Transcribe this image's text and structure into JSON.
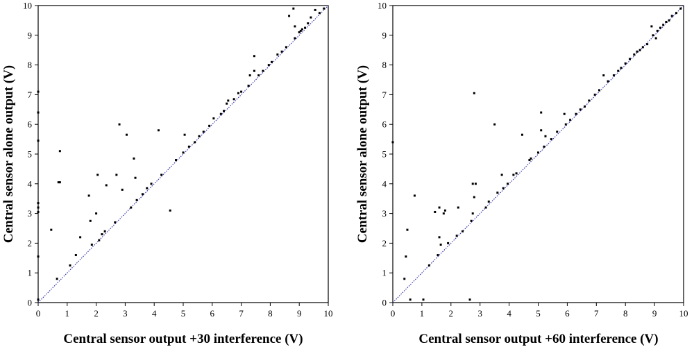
{
  "chart_data": [
    {
      "type": "scatter",
      "title": "",
      "xlabel": "Central sensor output +30 interference (V)",
      "ylabel": "Central sensor alone output (V)",
      "xlim": [
        0,
        10
      ],
      "ylim": [
        0,
        10
      ],
      "xticks": [
        "0",
        "1",
        "2",
        "3",
        "4",
        "5",
        "6",
        "7",
        "8",
        "9",
        "10"
      ],
      "yticks": [
        "0",
        "1",
        "2",
        "3",
        "4",
        "5",
        "6",
        "7",
        "8",
        "9",
        "10"
      ],
      "reference_line": {
        "type": "y=x",
        "color": "#3333aa",
        "style": "dotted"
      },
      "marker_color": "#000000",
      "points": [
        [
          0,
          0.1
        ],
        [
          0,
          1.55
        ],
        [
          0,
          3.05
        ],
        [
          0,
          3.2
        ],
        [
          0,
          3.35
        ],
        [
          0,
          5.45
        ],
        [
          0,
          6.4
        ],
        [
          0,
          7.1
        ],
        [
          0.45,
          2.45
        ],
        [
          0.65,
          0.8
        ],
        [
          0.7,
          4.05
        ],
        [
          0.75,
          4.05
        ],
        [
          0.75,
          5.1
        ],
        [
          1.1,
          1.25
        ],
        [
          1.3,
          1.6
        ],
        [
          1.45,
          2.2
        ],
        [
          1.75,
          3.6
        ],
        [
          1.8,
          2.75
        ],
        [
          1.85,
          1.95
        ],
        [
          2.0,
          3.0
        ],
        [
          2.05,
          4.3
        ],
        [
          2.1,
          2.1
        ],
        [
          2.2,
          2.3
        ],
        [
          2.3,
          2.4
        ],
        [
          2.35,
          3.95
        ],
        [
          2.65,
          2.7
        ],
        [
          2.7,
          4.3
        ],
        [
          2.8,
          6.0
        ],
        [
          2.9,
          3.8
        ],
        [
          3.05,
          5.65
        ],
        [
          3.2,
          3.2
        ],
        [
          3.3,
          4.85
        ],
        [
          3.35,
          4.2
        ],
        [
          3.4,
          3.45
        ],
        [
          3.6,
          3.65
        ],
        [
          3.75,
          3.85
        ],
        [
          3.9,
          4.0
        ],
        [
          4.15,
          5.8
        ],
        [
          4.25,
          4.3
        ],
        [
          4.55,
          3.1
        ],
        [
          4.75,
          4.8
        ],
        [
          5.0,
          5.05
        ],
        [
          5.05,
          5.65
        ],
        [
          5.2,
          5.25
        ],
        [
          5.4,
          5.4
        ],
        [
          5.55,
          5.6
        ],
        [
          5.7,
          5.75
        ],
        [
          5.9,
          5.95
        ],
        [
          6.05,
          6.2
        ],
        [
          6.3,
          6.35
        ],
        [
          6.4,
          6.45
        ],
        [
          6.5,
          6.7
        ],
        [
          6.55,
          6.8
        ],
        [
          6.75,
          6.85
        ],
        [
          6.9,
          7.05
        ],
        [
          7.0,
          7.1
        ],
        [
          7.25,
          7.3
        ],
        [
          7.3,
          7.65
        ],
        [
          7.45,
          7.8
        ],
        [
          7.45,
          8.3
        ],
        [
          7.6,
          7.65
        ],
        [
          7.75,
          7.8
        ],
        [
          7.95,
          8.0
        ],
        [
          8.05,
          8.1
        ],
        [
          8.25,
          8.35
        ],
        [
          8.4,
          8.45
        ],
        [
          8.55,
          8.6
        ],
        [
          8.65,
          9.65
        ],
        [
          8.8,
          9.9
        ],
        [
          8.85,
          8.9
        ],
        [
          8.85,
          9.3
        ],
        [
          9.0,
          9.1
        ],
        [
          9.05,
          9.15
        ],
        [
          9.1,
          9.2
        ],
        [
          9.2,
          9.25
        ],
        [
          9.3,
          9.4
        ],
        [
          9.4,
          9.6
        ],
        [
          9.55,
          9.85
        ],
        [
          9.7,
          9.75
        ],
        [
          9.85,
          9.9
        ]
      ]
    },
    {
      "type": "scatter",
      "title": "",
      "xlabel": "Central sensor output +60 interference (V)",
      "ylabel": "Central sensor alone output (V)",
      "xlim": [
        0,
        10
      ],
      "ylim": [
        0,
        10
      ],
      "xticks": [
        "0",
        "1",
        "2",
        "3",
        "4",
        "5",
        "6",
        "7",
        "8",
        "9",
        "10"
      ],
      "yticks": [
        "0",
        "1",
        "2",
        "3",
        "4",
        "5",
        "6",
        "7",
        "8",
        "9",
        "10"
      ],
      "reference_line": {
        "type": "y=x",
        "color": "#3333aa",
        "style": "dotted"
      },
      "marker_color": "#000000",
      "points": [
        [
          0,
          5.4
        ],
        [
          0.4,
          0.8
        ],
        [
          0.45,
          1.55
        ],
        [
          0.5,
          2.45
        ],
        [
          0.6,
          0.1
        ],
        [
          0.75,
          3.6
        ],
        [
          1.05,
          0.1
        ],
        [
          1.25,
          1.25
        ],
        [
          1.45,
          3.05
        ],
        [
          1.55,
          1.6
        ],
        [
          1.6,
          2.2
        ],
        [
          1.6,
          3.2
        ],
        [
          1.65,
          1.95
        ],
        [
          1.75,
          3.0
        ],
        [
          1.8,
          3.1
        ],
        [
          1.9,
          2.0
        ],
        [
          2.2,
          2.25
        ],
        [
          2.25,
          3.2
        ],
        [
          2.4,
          2.4
        ],
        [
          2.65,
          0.1
        ],
        [
          2.7,
          2.75
        ],
        [
          2.75,
          3.0
        ],
        [
          2.75,
          4.0
        ],
        [
          2.8,
          3.55
        ],
        [
          2.8,
          7.05
        ],
        [
          2.85,
          4.0
        ],
        [
          3.2,
          3.2
        ],
        [
          3.3,
          3.4
        ],
        [
          3.5,
          6.0
        ],
        [
          3.6,
          3.7
        ],
        [
          3.75,
          4.3
        ],
        [
          3.8,
          3.85
        ],
        [
          3.95,
          4.0
        ],
        [
          4.15,
          4.3
        ],
        [
          4.25,
          4.35
        ],
        [
          4.45,
          5.65
        ],
        [
          4.7,
          4.8
        ],
        [
          4.75,
          4.85
        ],
        [
          5.0,
          5.05
        ],
        [
          5.1,
          6.4
        ],
        [
          5.1,
          5.8
        ],
        [
          5.2,
          5.25
        ],
        [
          5.25,
          5.6
        ],
        [
          5.45,
          5.5
        ],
        [
          5.65,
          5.75
        ],
        [
          5.9,
          6.35
        ],
        [
          5.95,
          6.0
        ],
        [
          6.1,
          6.15
        ],
        [
          6.3,
          6.35
        ],
        [
          6.45,
          6.5
        ],
        [
          6.6,
          6.6
        ],
        [
          6.75,
          6.8
        ],
        [
          6.95,
          7.0
        ],
        [
          7.1,
          7.15
        ],
        [
          7.25,
          7.65
        ],
        [
          7.4,
          7.45
        ],
        [
          7.6,
          7.65
        ],
        [
          7.75,
          7.8
        ],
        [
          7.85,
          7.9
        ],
        [
          8.0,
          8.05
        ],
        [
          8.15,
          8.2
        ],
        [
          8.3,
          8.35
        ],
        [
          8.4,
          8.45
        ],
        [
          8.5,
          8.5
        ],
        [
          8.6,
          8.6
        ],
        [
          8.75,
          8.7
        ],
        [
          8.9,
          9.3
        ],
        [
          8.95,
          9.0
        ],
        [
          9.05,
          8.9
        ],
        [
          9.1,
          9.15
        ],
        [
          9.2,
          9.25
        ],
        [
          9.3,
          9.35
        ],
        [
          9.4,
          9.45
        ],
        [
          9.5,
          9.5
        ],
        [
          9.6,
          9.65
        ],
        [
          9.75,
          9.75
        ],
        [
          9.9,
          9.9
        ]
      ]
    }
  ]
}
